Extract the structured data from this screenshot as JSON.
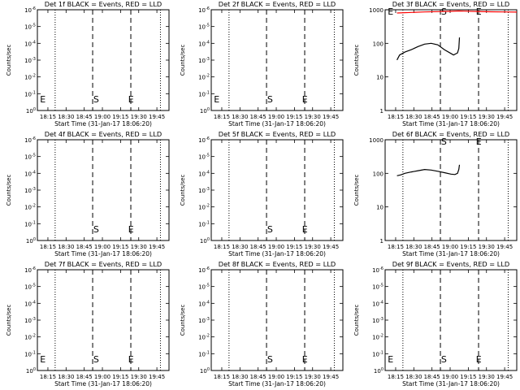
{
  "chart_data": [
    {
      "type": "line",
      "title": "Det 1f BLACK = Events, RED = LLD",
      "xlabel": "Start Time (31-Jan-17 18:06:20)",
      "ylabel": "Counts/sec",
      "y_scale": "log",
      "xticks": [
        "18:15",
        "18:30",
        "18:45",
        "19:00",
        "19:15",
        "19:30",
        "19:45"
      ],
      "yticks": [
        "10^0",
        "10^-1",
        "10^-2",
        "10^-3",
        "10^-4",
        "10^-5",
        "10^-6"
      ],
      "markers": [
        "E",
        "S",
        "E"
      ],
      "series": []
    },
    {
      "type": "line",
      "title": "Det 2f BLACK = Events, RED = LLD",
      "xlabel": "Start Time (31-Jan-17 18:06:20)",
      "ylabel": "Counts/sec",
      "y_scale": "log",
      "xticks": [
        "18:15",
        "18:30",
        "18:45",
        "19:00",
        "19:15",
        "19:30",
        "19:45"
      ],
      "yticks": [
        "10^0",
        "10^-1",
        "10^-2",
        "10^-3",
        "10^-4",
        "10^-5",
        "10^-6"
      ],
      "markers": [
        "E",
        "S",
        "E"
      ],
      "series": []
    },
    {
      "type": "line",
      "title": "Det 3f BLACK = Events, RED = LLD",
      "xlabel": "Start Time (31-Jan-17 18:06:20)",
      "ylabel": "Counts/sec",
      "y_scale": "log",
      "xticks": [
        "18:15",
        "18:30",
        "18:45",
        "19:00",
        "19:15",
        "19:30",
        "19:45"
      ],
      "yticks": [
        "1",
        "10",
        "100",
        "1000"
      ],
      "markers": [
        "E",
        "S",
        "E"
      ],
      "series": [
        {
          "color": "#ff0000",
          "x": [
            0.09,
            0.2,
            0.3,
            0.4,
            0.5,
            0.56,
            0.6,
            0.7,
            0.8,
            0.9,
            1.0
          ],
          "y": [
            800,
            830,
            860,
            880,
            900,
            920,
            910,
            890,
            870,
            860,
            850
          ]
        },
        {
          "color": "#000000",
          "x": [
            0.09,
            0.11,
            0.15,
            0.2,
            0.25,
            0.3,
            0.35,
            0.4,
            0.45,
            0.5,
            0.52,
            0.55,
            0.56,
            0.565
          ],
          "y": [
            32,
            45,
            55,
            65,
            80,
            95,
            100,
            90,
            65,
            50,
            45,
            52,
            70,
            150
          ]
        }
      ]
    },
    {
      "type": "line",
      "title": "Det 4f BLACK = Events, RED = LLD",
      "xlabel": "Start Time (31-Jan-17 18:06:20)",
      "ylabel": "Counts/sec",
      "y_scale": "log",
      "xticks": [
        "18:15",
        "18:30",
        "18:45",
        "19:00",
        "19:15",
        "19:30",
        "19:45"
      ],
      "yticks": [
        "10^0",
        "10^-1",
        "10^-2",
        "10^-3",
        "10^-4",
        "10^-5",
        "10^-6"
      ],
      "markers": [
        "S",
        "E"
      ],
      "series": []
    },
    {
      "type": "line",
      "title": "Det 5f BLACK = Events, RED = LLD",
      "xlabel": "Start Time (31-Jan-17 18:06:20)",
      "ylabel": "Counts/sec",
      "y_scale": "log",
      "xticks": [
        "18:15",
        "18:30",
        "18:45",
        "19:00",
        "19:15",
        "19:30",
        "19:45"
      ],
      "yticks": [
        "10^0",
        "10^-1",
        "10^-2",
        "10^-3",
        "10^-4",
        "10^-5",
        "10^-6"
      ],
      "markers": [
        "S",
        "E"
      ],
      "series": []
    },
    {
      "type": "line",
      "title": "Det 6f BLACK = Events, RED = LLD",
      "xlabel": "Start Time (31-Jan-17 18:06:20)",
      "ylabel": "Counts/sec",
      "y_scale": "log",
      "xticks": [
        "18:15",
        "18:30",
        "18:45",
        "19:00",
        "19:15",
        "19:30",
        "19:45"
      ],
      "yticks": [
        "1",
        "10",
        "100",
        "1000"
      ],
      "markers": [
        "S",
        "E"
      ],
      "series": [
        {
          "color": "#000000",
          "x": [
            0.09,
            0.12,
            0.15,
            0.2,
            0.25,
            0.3,
            0.35,
            0.4,
            0.45,
            0.5,
            0.53,
            0.55,
            0.56,
            0.565
          ],
          "y": [
            85,
            90,
            100,
            110,
            120,
            130,
            125,
            115,
            105,
            95,
            92,
            100,
            130,
            180
          ]
        }
      ]
    },
    {
      "type": "line",
      "title": "Det 7f BLACK = Events, RED = LLD",
      "xlabel": "Start Time (31-Jan-17 18:06:20)",
      "ylabel": "Counts/sec",
      "y_scale": "log",
      "xticks": [
        "18:15",
        "18:30",
        "18:45",
        "19:00",
        "19:15",
        "19:30",
        "19:45"
      ],
      "yticks": [
        "10^0",
        "10^-1",
        "10^-2",
        "10^-3",
        "10^-4",
        "10^-5",
        "10^-6"
      ],
      "markers": [
        "E",
        "S",
        "E"
      ],
      "series": []
    },
    {
      "type": "line",
      "title": "Det 8f BLACK = Events, RED = LLD",
      "xlabel": "Start Time (31-Jan-17 18:06:20)",
      "ylabel": "Counts/sec",
      "y_scale": "log",
      "xticks": [
        "18:15",
        "18:30",
        "18:45",
        "19:00",
        "19:15",
        "19:30",
        "19:45"
      ],
      "yticks": [
        "10^0",
        "10^-1",
        "10^-2",
        "10^-3",
        "10^-4",
        "10^-5",
        "10^-6"
      ],
      "markers": [
        "S",
        "E"
      ],
      "series": []
    },
    {
      "type": "line",
      "title": "Det 9f BLACK = Events, RED = LLD",
      "xlabel": "Start Time (31-Jan-17 18:06:20)",
      "ylabel": "Counts/sec",
      "y_scale": "log",
      "xticks": [
        "18:15",
        "18:30",
        "18:45",
        "19:00",
        "19:15",
        "19:30",
        "19:45"
      ],
      "yticks": [
        "10^0",
        "10^-1",
        "10^-2",
        "10^-3",
        "10^-4",
        "10^-5",
        "10^-6"
      ],
      "markers": [
        "E",
        "S",
        "E"
      ],
      "series": []
    }
  ]
}
